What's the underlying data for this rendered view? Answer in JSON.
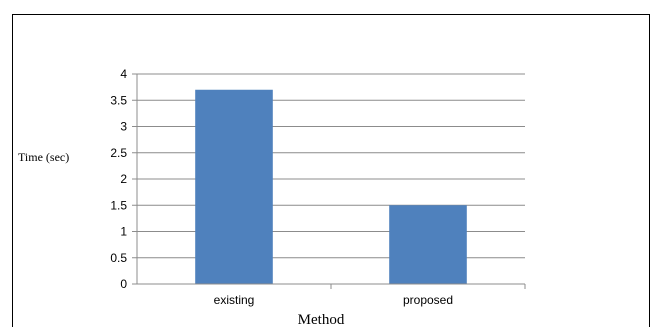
{
  "chart_data": {
    "type": "bar",
    "categories": [
      "existing",
      "proposed"
    ],
    "values": [
      3.7,
      1.5
    ],
    "xlabel": "Method",
    "ylabel": "Time (sec)",
    "ylim": [
      0,
      4
    ],
    "yticks": [
      "0",
      "0.5",
      "1",
      "1.5",
      "2",
      "2.5",
      "3",
      "3.5",
      "4"
    ],
    "grid": true,
    "legend": "none",
    "bar_color": "#4f81bd"
  }
}
